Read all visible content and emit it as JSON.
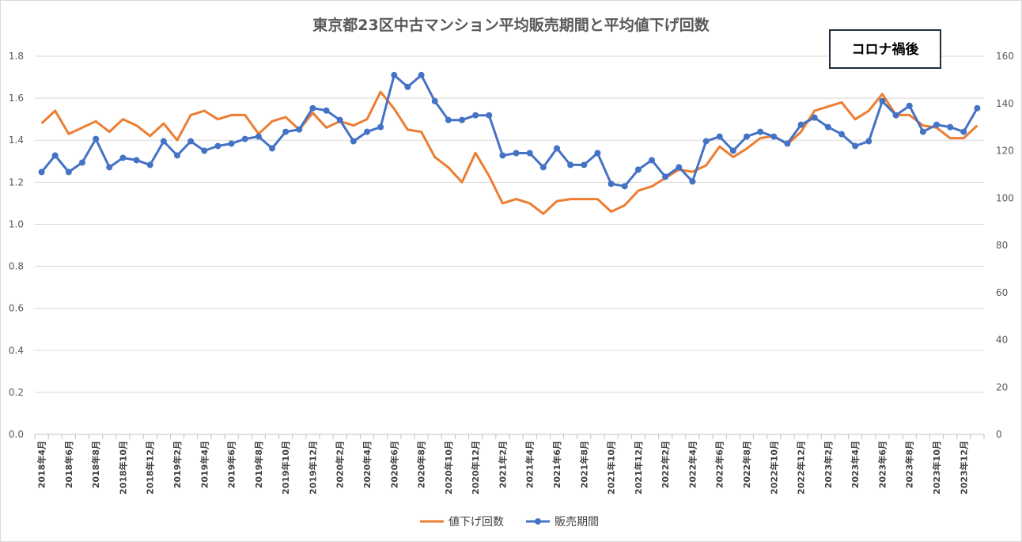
{
  "chart_data": {
    "type": "line",
    "title": "東京都23区中古マンション平均販売期間と平均値下げ回数",
    "annotation": "コロナ禍後",
    "x": [
      "2018年4月",
      "2018年5月",
      "2018年6月",
      "2018年7月",
      "2018年8月",
      "2018年9月",
      "2018年10月",
      "2018年11月",
      "2018年12月",
      "2019年1月",
      "2019年2月",
      "2019年3月",
      "2019年4月",
      "2019年5月",
      "2019年6月",
      "2019年7月",
      "2019年8月",
      "2019年9月",
      "2019年10月",
      "2019年11月",
      "2019年12月",
      "2020年1月",
      "2020年2月",
      "2020年3月",
      "2020年4月",
      "2020年5月",
      "2020年6月",
      "2020年7月",
      "2020年8月",
      "2020年9月",
      "2020年10月",
      "2020年11月",
      "2020年12月",
      "2021年1月",
      "2021年2月",
      "2021年3月",
      "2021年4月",
      "2021年5月",
      "2021年6月",
      "2021年7月",
      "2021年8月",
      "2021年9月",
      "2021年10月",
      "2021年11月",
      "2021年12月",
      "2022年1月",
      "2022年2月",
      "2022年3月",
      "2022年4月",
      "2022年5月",
      "2022年6月",
      "2022年7月",
      "2022年8月",
      "2022年9月",
      "2022年10月",
      "2022年11月",
      "2022年12月",
      "2023年1月",
      "2023年2月",
      "2023年3月",
      "2023年4月",
      "2023年5月",
      "2023年6月",
      "2023年7月",
      "2023年8月",
      "2023年9月",
      "2023年10月",
      "2023年11月",
      "2023年12月",
      "2024年1月"
    ],
    "x_tick_labels": [
      "2018年4月",
      "2018年6月",
      "2018年8月",
      "2018年10月",
      "2018年12月",
      "2019年2月",
      "2019年4月",
      "2019年6月",
      "2019年8月",
      "2019年10月",
      "2019年12月",
      "2020年2月",
      "2020年4月",
      "2020年6月",
      "2020年8月",
      "2020年10月",
      "2020年12月",
      "2021年2月",
      "2021年4月",
      "2021年6月",
      "2021年8月",
      "2021年10月",
      "2021年12月",
      "2022年2月",
      "2022年4月",
      "2022年6月",
      "2022年8月",
      "2022年10月",
      "2022年12月",
      "2023年2月",
      "2023年4月",
      "2023年6月",
      "2023年8月",
      "2023年10月",
      "2023年12月"
    ],
    "series": [
      {
        "name": "値下げ回数",
        "axis": "left",
        "color": "#ED7D31",
        "marker": false,
        "values": [
          1.48,
          1.54,
          1.43,
          1.46,
          1.49,
          1.44,
          1.5,
          1.47,
          1.42,
          1.48,
          1.4,
          1.52,
          1.54,
          1.5,
          1.52,
          1.52,
          1.43,
          1.49,
          1.51,
          1.45,
          1.53,
          1.46,
          1.49,
          1.47,
          1.5,
          1.63,
          1.55,
          1.45,
          1.44,
          1.32,
          1.27,
          1.2,
          1.34,
          1.23,
          1.1,
          1.12,
          1.1,
          1.05,
          1.11,
          1.12,
          1.12,
          1.12,
          1.06,
          1.09,
          1.16,
          1.18,
          1.22,
          1.26,
          1.25,
          1.28,
          1.37,
          1.32,
          1.36,
          1.41,
          1.42,
          1.38,
          1.44,
          1.54,
          1.56,
          1.58,
          1.5,
          1.54,
          1.62,
          1.52,
          1.52,
          1.47,
          1.46,
          1.41,
          1.41,
          1.47
        ]
      },
      {
        "name": "販売期間",
        "axis": "right",
        "color": "#4472C4",
        "marker": true,
        "values": [
          111,
          118,
          111,
          115,
          125,
          113,
          117,
          116,
          114,
          124,
          118,
          124,
          120,
          122,
          123,
          125,
          126,
          121,
          128,
          129,
          138,
          137,
          133,
          124,
          128,
          130,
          152,
          147,
          152,
          141,
          133,
          133,
          135,
          135,
          118,
          119,
          119,
          113,
          121,
          114,
          114,
          119,
          106,
          105,
          112,
          116,
          109,
          113,
          107,
          124,
          126,
          120,
          126,
          128,
          126,
          123,
          131,
          134,
          130,
          127,
          122,
          124,
          141,
          135,
          139,
          128,
          131,
          130,
          128,
          138
        ]
      }
    ],
    "y_left": {
      "min": 0,
      "max": 1.8,
      "ticks": [
        "0.0",
        "0.2",
        "0.4",
        "0.6",
        "0.8",
        "1.0",
        "1.2",
        "1.4",
        "1.6",
        "1.8"
      ]
    },
    "y_right": {
      "min": 0,
      "max": 160,
      "ticks": [
        "0",
        "20",
        "40",
        "60",
        "80",
        "100",
        "120",
        "140",
        "160"
      ]
    },
    "grid": true,
    "legend_position": "bottom"
  }
}
